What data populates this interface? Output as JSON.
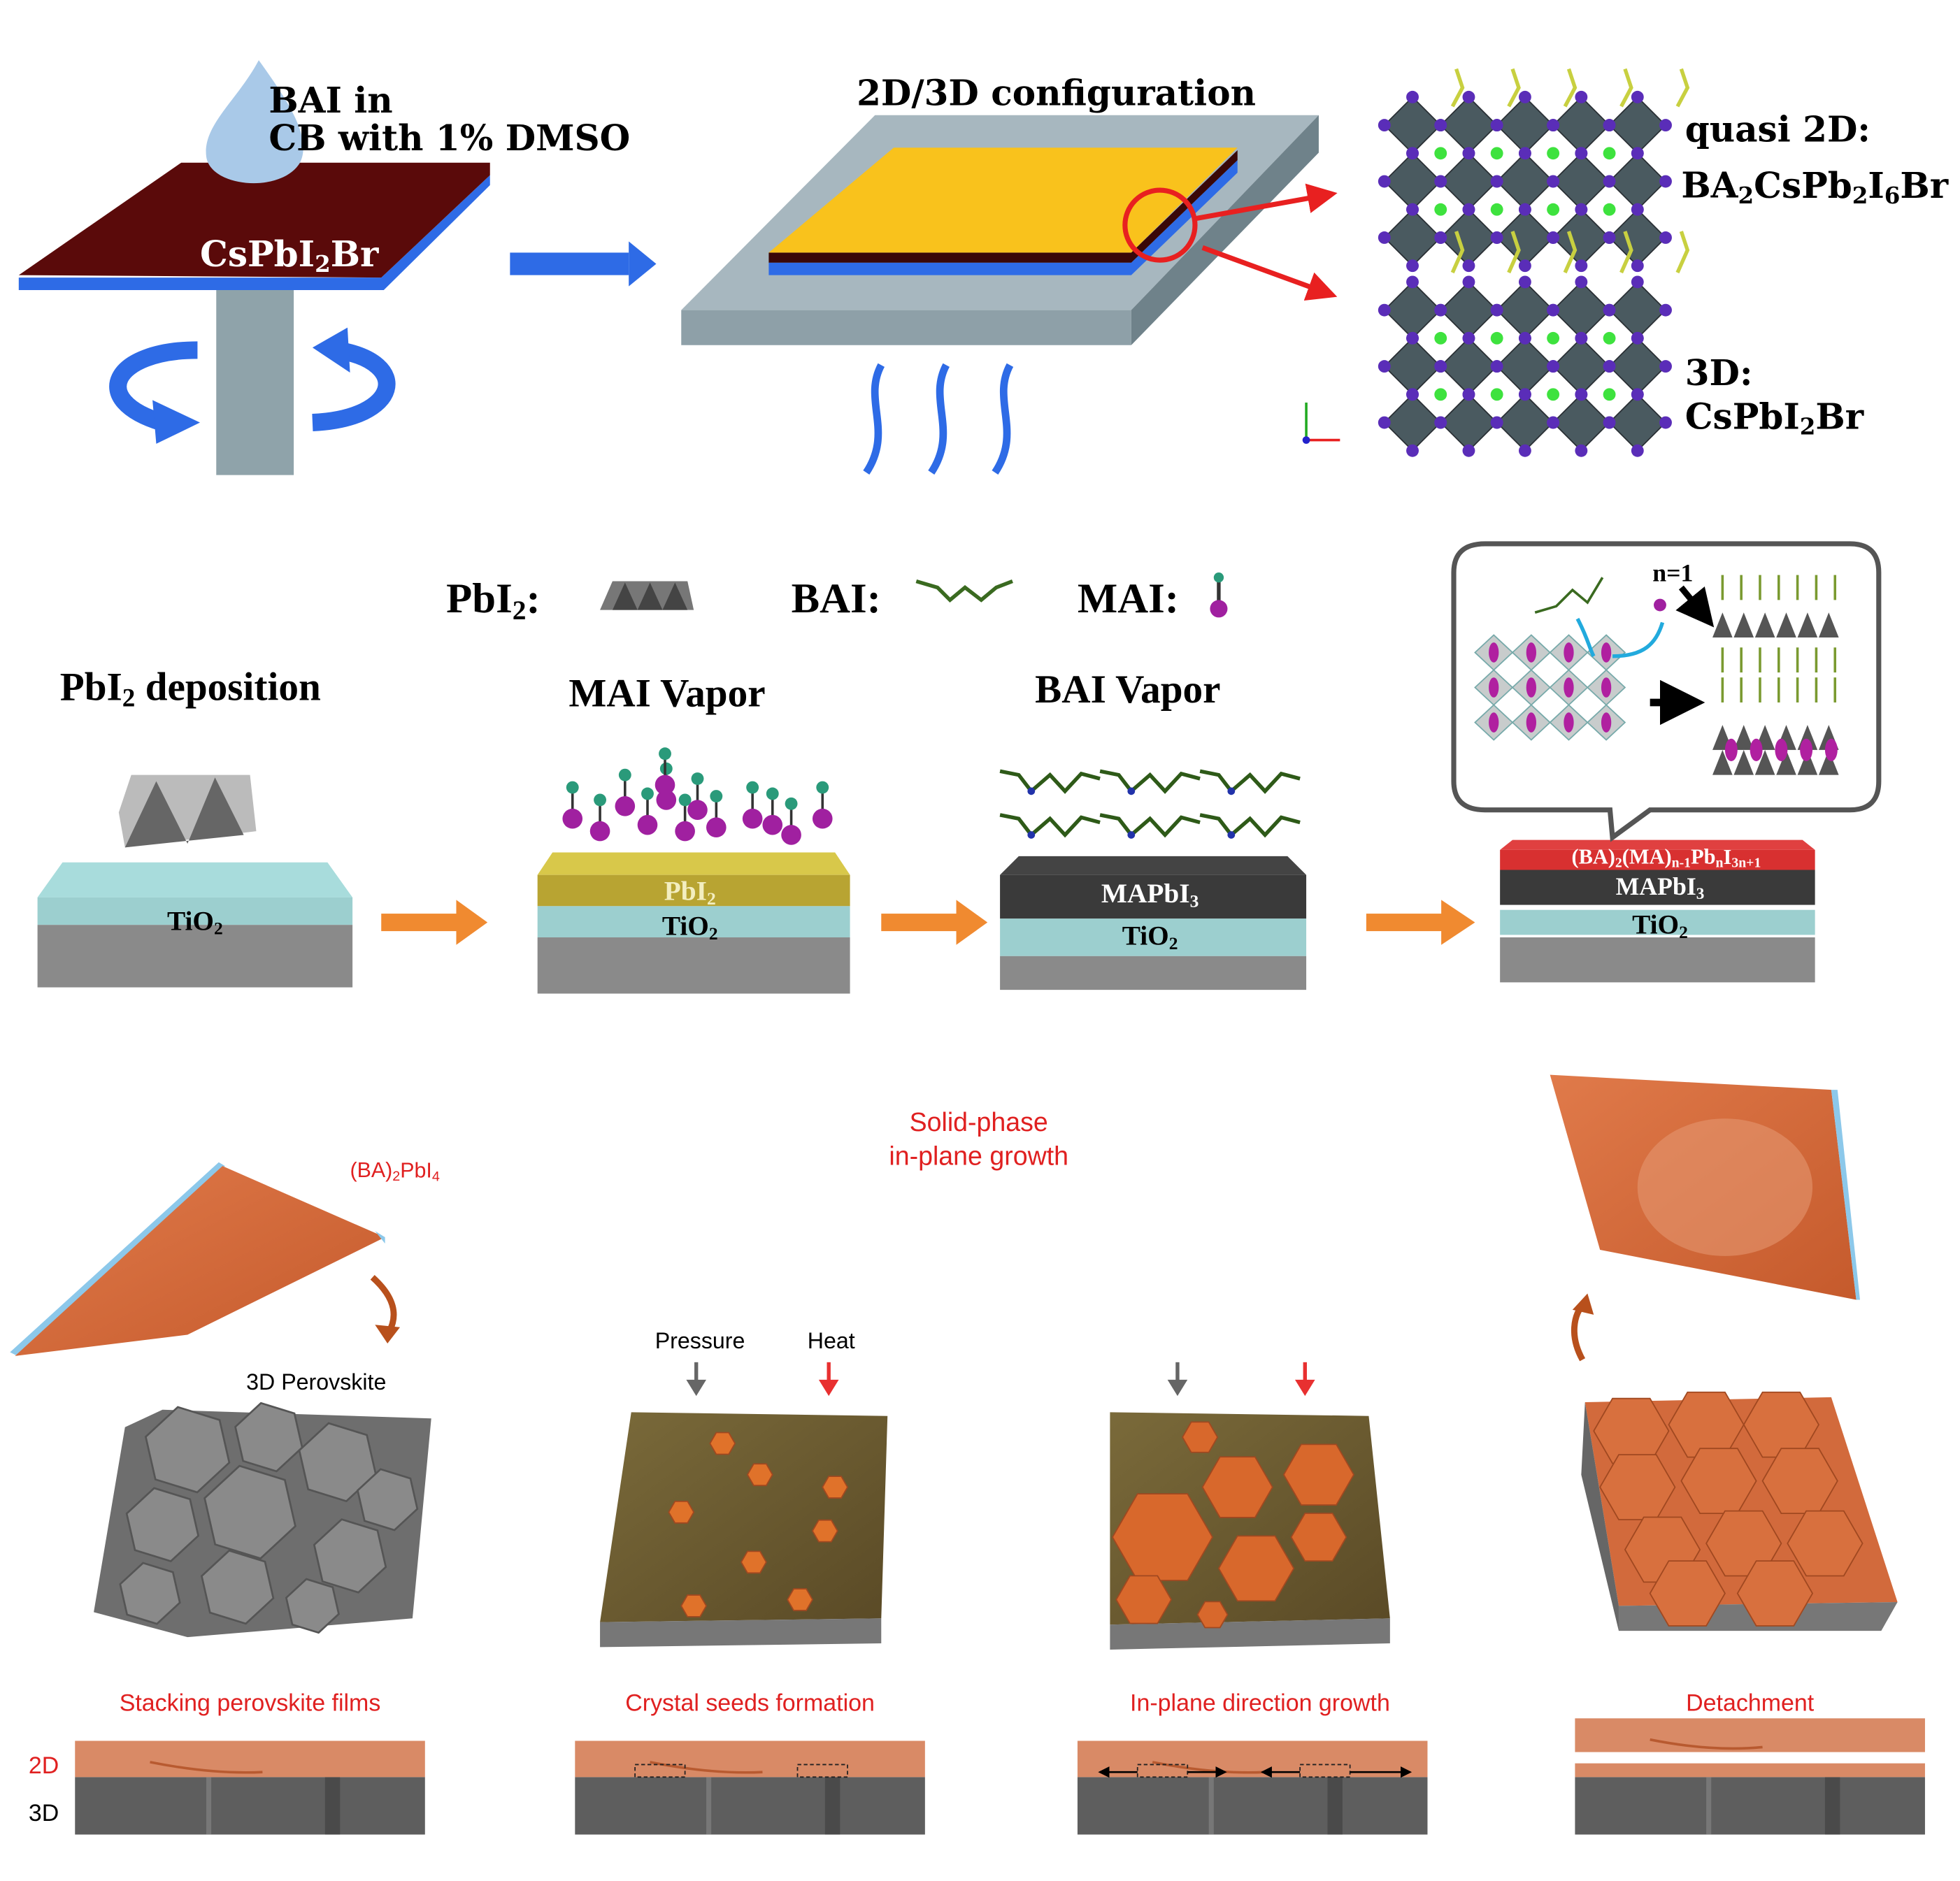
{
  "panel_a": {
    "drop_label_line1": "BAI in",
    "drop_label_line2": "CB with 1% DMSO",
    "substrate_label": [
      {
        "t": "CsPbI"
      },
      {
        "t": "2",
        "sub": true
      },
      {
        "t": "Br"
      }
    ],
    "title": "2D/3D configuration",
    "quasi2d_label": "quasi 2D:",
    "quasi2d_formula": [
      {
        "t": "BA"
      },
      {
        "t": "2",
        "sub": true
      },
      {
        "t": "CsPb"
      },
      {
        "t": "2",
        "sub": true
      },
      {
        "t": "I"
      },
      {
        "t": "6",
        "sub": true
      },
      {
        "t": "Br"
      }
    ],
    "threed_label": "3D:",
    "threed_formula": [
      {
        "t": "CsPbI"
      },
      {
        "t": "2",
        "sub": true
      },
      {
        "t": "Br"
      }
    ],
    "colors": {
      "film": "#5a0a0a",
      "accent_blue": "#2e6be6",
      "top_film": "#f9c21c",
      "hotplate": "#9fb0b8",
      "octahedra": "#5a2db8",
      "cs": "#3ee23e"
    }
  },
  "panel_b": {
    "legend": {
      "pbi2": [
        {
          "t": "PbI"
        },
        {
          "t": "2",
          "sub": true
        },
        {
          "t": ":"
        }
      ],
      "bai": "BAI:",
      "mai": "MAI:"
    },
    "steps": {
      "deposition": [
        {
          "t": "PbI"
        },
        {
          "t": "2",
          "sub": true
        },
        {
          "t": " deposition"
        }
      ],
      "mai_vapor": "MAI Vapor",
      "bai_vapor": "BAI Vapor"
    },
    "layers": {
      "tio2": [
        {
          "t": "TiO"
        },
        {
          "t": "2",
          "sub": true
        }
      ],
      "pbi2": [
        {
          "t": "PbI"
        },
        {
          "t": "2",
          "sub": true
        }
      ],
      "mapbi3": [
        {
          "t": "MAPbI"
        },
        {
          "t": "3",
          "sub": true
        }
      ],
      "quasi2d": [
        {
          "t": "(BA)"
        },
        {
          "t": "2",
          "sub": true
        },
        {
          "t": "(MA)"
        },
        {
          "t": "n-1",
          "sub": true
        },
        {
          "t": "Pb"
        },
        {
          "t": "n",
          "sub": true
        },
        {
          "t": "I"
        },
        {
          "t": "3n+1",
          "sub": true
        }
      ]
    },
    "callout_label": "n=1",
    "colors": {
      "tio2": "#a8dcdc",
      "substrate": "#8a8a8a",
      "pbi2": "#c8b43a",
      "mapbi3": "#3a3a3a",
      "quasi2d": "#d83030",
      "arrow": "#f08a30",
      "mai": "#a020a0"
    }
  },
  "panel_c": {
    "center_label_line1": "Solid-phase",
    "center_label_line2": "in-plane growth",
    "sheet_label": [
      {
        "t": "(BA)"
      },
      {
        "t": "2",
        "sub": true
      },
      {
        "t": "PbI"
      },
      {
        "t": "4",
        "sub": true
      }
    ],
    "perovskite_label": "3D Perovskite",
    "pressure_label": "Pressure",
    "heat_label": "Heat",
    "captions": [
      "Stacking perovskite films",
      "Crystal seeds formation",
      "In-plane direction growth",
      "Detachment"
    ],
    "layer_2d": "2D",
    "layer_3d": "3D",
    "colors": {
      "sheet": "#d2693c",
      "grain": "#6e6e6e",
      "olive": "#6b5a2e",
      "caption": "#e02020"
    }
  }
}
